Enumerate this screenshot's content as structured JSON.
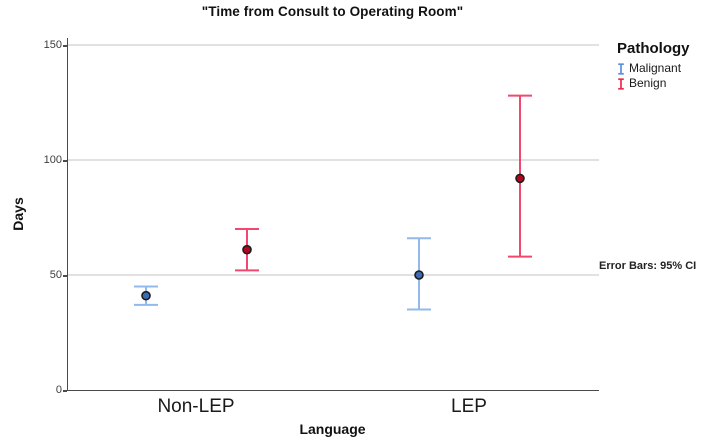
{
  "chart_data": {
    "type": "errorbar",
    "title": "\"Time from Consult to Operating Room\"",
    "xlabel": "Language",
    "ylabel": "Days",
    "categories": [
      "Non-LEP",
      "LEP"
    ],
    "legend_title": "Pathology",
    "legend_position": "right",
    "grid": true,
    "yticks": [
      0,
      50,
      100,
      150
    ],
    "ylim": [
      0,
      153
    ],
    "footnote": "Error Bars: 95% CI",
    "series": [
      {
        "name": "Malignant",
        "line_color": "#93B8EC",
        "marker_color": "#3D6CB4",
        "legend_color": "#5B8FDE",
        "means": [
          41,
          50
        ],
        "ci_low": [
          37,
          35
        ],
        "ci_high": [
          45,
          66
        ]
      },
      {
        "name": "Benign",
        "line_color": "#F2486F",
        "marker_color": "#B4051F",
        "legend_color": "#EA2D49",
        "means": [
          61,
          92
        ],
        "ci_low": [
          52,
          58
        ],
        "ci_high": [
          70,
          128
        ]
      }
    ],
    "colors": {
      "gridline": "#D7D7D7",
      "axis": "#4A4A4A",
      "marker_outline": "#1C1C1C"
    }
  }
}
